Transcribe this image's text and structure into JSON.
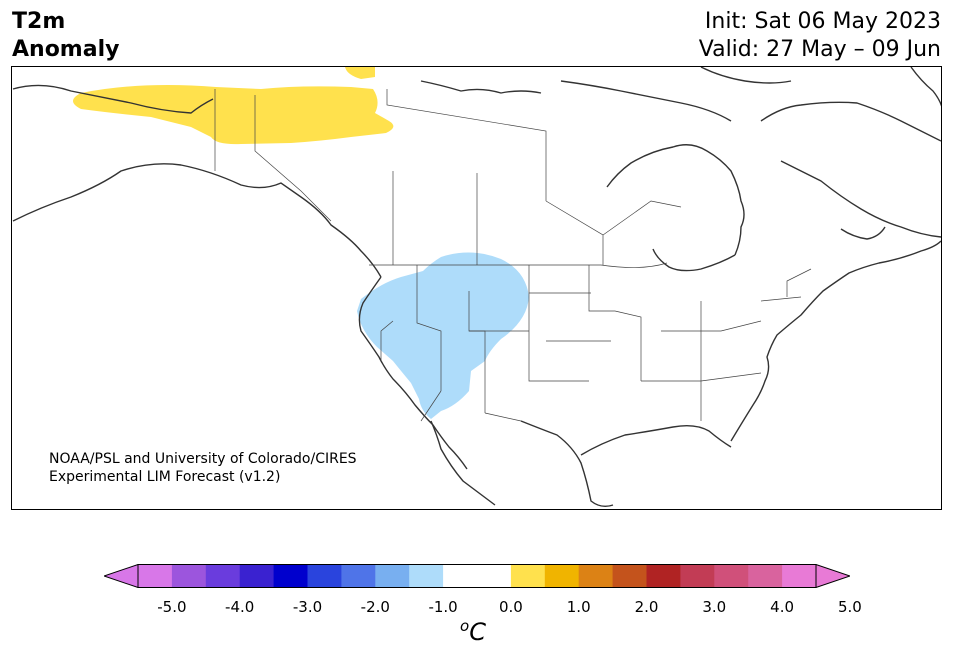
{
  "header": {
    "variable": "T2m",
    "subtitle": "Anomaly",
    "init": "Init: Sat 06 May 2023",
    "valid": "Valid: 27 May – 09 Jun"
  },
  "credit": {
    "line1": "NOAA/PSL and University of Colorado/CIRES",
    "line2": "Experimental LIM Forecast (v1.2)"
  },
  "map": {
    "region": "North America",
    "anomalies": [
      {
        "sign": "positive",
        "color": "#ffe14d",
        "area": "northwestern Canada"
      },
      {
        "sign": "positive",
        "color": "#ffe14d",
        "area": "northern Canadian islands"
      },
      {
        "sign": "negative",
        "color": "#aedcfa",
        "area": "western United States"
      }
    ]
  },
  "colorbar": {
    "unit_base": "C",
    "unit_prefix": "o",
    "colors": [
      "#d877e8",
      "#9c55dd",
      "#6a3cdd",
      "#3a22d0",
      "#0000cd",
      "#2a44dd",
      "#4f74e8",
      "#78aff0",
      "#aedcfa",
      "#ffffff",
      "#ffffff",
      "#ffe14d",
      "#f0b400",
      "#dc8215",
      "#c4531c",
      "#b02323",
      "#c23c55",
      "#d0507a",
      "#d9639e",
      "#e87ad6"
    ],
    "extend_low": "#d877e8",
    "extend_high": "#e87ad6",
    "ticks": [
      "-5.0",
      "-4.0",
      "-3.0",
      "-2.0",
      "-1.0",
      "0.0",
      "1.0",
      "2.0",
      "3.0",
      "4.0",
      "5.0"
    ]
  }
}
